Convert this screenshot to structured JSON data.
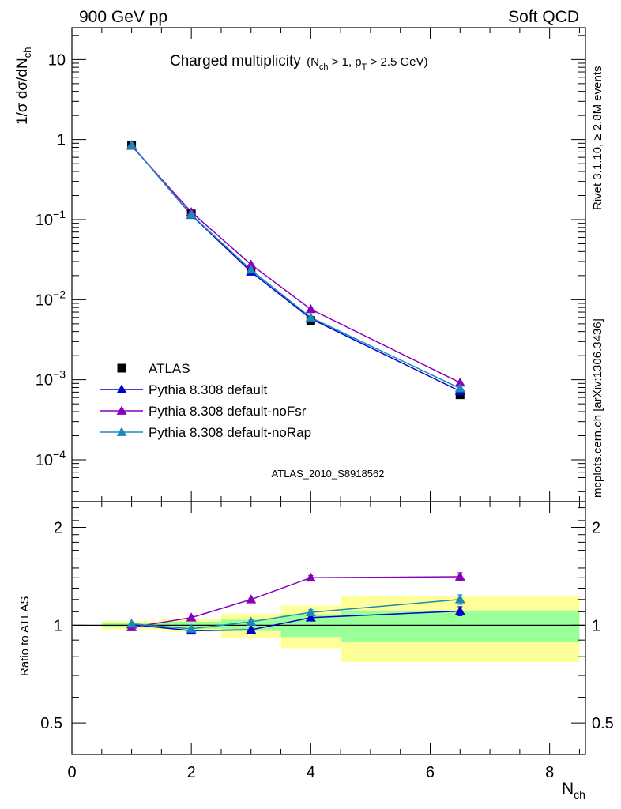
{
  "header": {
    "left": "900 GeV pp",
    "right": "Soft QCD"
  },
  "side_labels": {
    "rivet": "Rivet 3.1.10, ≥ 2.8M events",
    "mcplots": "mcplots.cern.ch [arXiv:1306.3436]"
  },
  "watermark": "ATLAS_2010_S8918562",
  "colors": {
    "atlas": "#000000",
    "default": "#0000cc",
    "noFsr": "#8800bb",
    "noRap": "#1a8ab8",
    "band_inner": "#99ff99",
    "band_outer": "#ffff99"
  },
  "chart_data": [
    {
      "type": "line",
      "title": "Charged multiplicity",
      "title_sub": "(N_ch > 1, p_T > 2.5 GeV)",
      "ylabel": "1/σ dσ/dN_ch",
      "xlabel": "N_ch",
      "yscale": "log",
      "ylim": [
        3e-05,
        25
      ],
      "xlim": [
        0,
        8.6
      ],
      "yticks": [
        0.0001,
        0.001,
        0.01,
        0.1,
        1,
        10
      ],
      "ytick_labels": [
        "10^-4",
        "10^-3",
        "10^-2",
        "10^-1",
        "1",
        "10"
      ],
      "legend_position": "lower-left",
      "data": {
        "name": "ATLAS",
        "x": [
          1,
          2,
          3,
          4,
          6.5
        ],
        "y": [
          0.85,
          0.118,
          0.023,
          0.0055,
          0.00065
        ]
      },
      "series": [
        {
          "name": "Pythia 8.308 default",
          "color_key": "default",
          "x": [
            1,
            2,
            3,
            4,
            6.5
          ],
          "y": [
            0.85,
            0.114,
            0.0223,
            0.0058,
            0.00072
          ]
        },
        {
          "name": "Pythia 8.308 default-noFsr",
          "color_key": "noFsr",
          "x": [
            1,
            2,
            3,
            4,
            6.5
          ],
          "y": [
            0.835,
            0.124,
            0.0275,
            0.0076,
            0.00092
          ]
        },
        {
          "name": "Pythia 8.308 default-noRap",
          "color_key": "noRap",
          "x": [
            1,
            2,
            3,
            4,
            6.5
          ],
          "y": [
            0.855,
            0.115,
            0.0236,
            0.006,
            0.00078
          ]
        }
      ]
    },
    {
      "type": "line",
      "ylabel": "Ratio to ATLAS",
      "xlabel": "N_ch",
      "yscale": "log",
      "ylim": [
        0.4,
        2.4
      ],
      "xlim": [
        0,
        8.6
      ],
      "yticks": [
        0.5,
        1,
        2
      ],
      "ytick_labels": [
        "0.5",
        "1",
        "2"
      ],
      "xticks": [
        0,
        2,
        4,
        6,
        8
      ],
      "xtick_labels": [
        "0",
        "2",
        "4",
        "6",
        "8"
      ],
      "uncertainty_bands": [
        {
          "x_range": [
            0.5,
            1.5
          ],
          "inner": [
            0.985,
            1.015
          ],
          "outer": [
            0.97,
            1.03
          ]
        },
        {
          "x_range": [
            1.5,
            2.5
          ],
          "inner": [
            0.975,
            1.025
          ],
          "outer": [
            0.955,
            1.045
          ]
        },
        {
          "x_range": [
            2.5,
            3.5
          ],
          "inner": [
            0.96,
            1.04
          ],
          "outer": [
            0.915,
            1.085
          ]
        },
        {
          "x_range": [
            3.5,
            4.5
          ],
          "inner": [
            0.92,
            1.08
          ],
          "outer": [
            0.85,
            1.15
          ]
        },
        {
          "x_range": [
            4.5,
            8.5
          ],
          "inner": [
            0.89,
            1.11
          ],
          "outer": [
            0.77,
            1.23
          ]
        }
      ],
      "series": [
        {
          "name": "Pythia 8.308 default",
          "color_key": "default",
          "x": [
            1,
            2,
            3,
            4,
            6.5
          ],
          "y": [
            1.005,
            0.962,
            0.968,
            1.055,
            1.105
          ],
          "err": [
            0.01,
            0.01,
            0.012,
            0.02,
            0.035
          ]
        },
        {
          "name": "Pythia 8.308 default-noFsr",
          "color_key": "noFsr",
          "x": [
            1,
            2,
            3,
            4,
            6.5
          ],
          "y": [
            0.985,
            1.055,
            1.2,
            1.4,
            1.41
          ],
          "err": [
            0.008,
            0.01,
            0.012,
            0.022,
            0.04
          ]
        },
        {
          "name": "Pythia 8.308 default-noRap",
          "color_key": "noRap",
          "x": [
            1,
            2,
            3,
            4,
            6.5
          ],
          "y": [
            1.01,
            0.975,
            1.025,
            1.095,
            1.2
          ],
          "err": [
            0.008,
            0.01,
            0.012,
            0.022,
            0.04
          ]
        }
      ]
    }
  ]
}
